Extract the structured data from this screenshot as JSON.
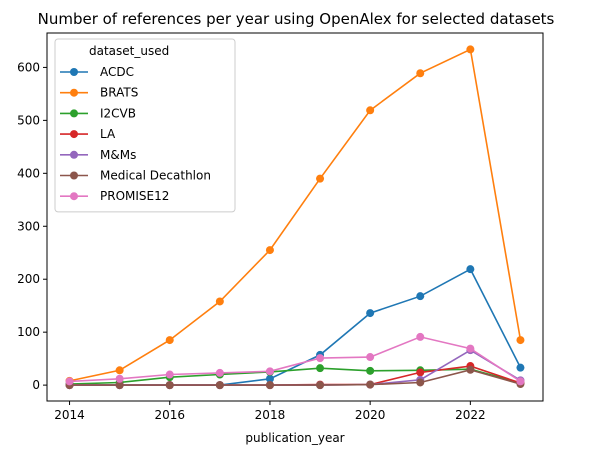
{
  "chart_data": {
    "type": "line",
    "title": "Number of references per year using OpenAlex for selected datasets",
    "xlabel": "publication_year",
    "ylabel": "",
    "x": [
      2014,
      2015,
      2016,
      2017,
      2018,
      2019,
      2020,
      2021,
      2022,
      2023
    ],
    "xticks": [
      2014,
      2016,
      2018,
      2020,
      2022
    ],
    "yticks": [
      0,
      100,
      200,
      300,
      400,
      500,
      600
    ],
    "xlim": [
      2013.55,
      2023.45
    ],
    "ylim": [
      -30,
      665
    ],
    "grid": false,
    "legend_title": "dataset_used",
    "legend_position": "top-left",
    "series": [
      {
        "name": "ACDC",
        "color": "#1f77b4",
        "values": [
          0,
          0,
          0,
          0,
          12,
          57,
          136,
          168,
          219,
          33
        ]
      },
      {
        "name": "BRATS",
        "color": "#ff7f0e",
        "values": [
          8,
          28,
          85,
          158,
          255,
          390,
          519,
          589,
          634,
          85
        ]
      },
      {
        "name": "I2CVB",
        "color": "#2ca02c",
        "values": [
          2,
          5,
          15,
          20,
          25,
          32,
          27,
          28,
          30,
          4
        ]
      },
      {
        "name": "LA",
        "color": "#d62728",
        "values": [
          0,
          0,
          0,
          0,
          0,
          1,
          1,
          24,
          36,
          4
        ]
      },
      {
        "name": "M&Ms",
        "color": "#9467bd",
        "values": [
          0,
          0,
          0,
          0,
          0,
          0,
          1,
          10,
          66,
          9
        ]
      },
      {
        "name": "Medical Decathlon",
        "color": "#8c564b",
        "values": [
          0,
          0,
          0,
          0,
          0,
          0,
          1,
          5,
          29,
          2
        ]
      },
      {
        "name": "PROMISE12",
        "color": "#e377c2",
        "values": [
          7,
          12,
          20,
          23,
          26,
          51,
          53,
          91,
          69,
          7
        ]
      }
    ]
  }
}
